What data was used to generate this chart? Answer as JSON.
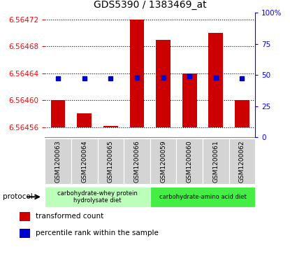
{
  "title": "GDS5390 / 1383469_at",
  "samples": [
    "GSM1200063",
    "GSM1200064",
    "GSM1200065",
    "GSM1200066",
    "GSM1200059",
    "GSM1200060",
    "GSM1200061",
    "GSM1200062"
  ],
  "transformed_count": [
    6.5646,
    6.56458,
    6.564562,
    6.56472,
    6.56469,
    6.56464,
    6.5647,
    6.5646
  ],
  "percentile_rank": [
    47,
    47,
    47,
    48,
    48,
    49,
    48,
    47
  ],
  "baseline": 6.56456,
  "ylim_left": [
    6.564545,
    6.56473
  ],
  "ylim_right": [
    0,
    100
  ],
  "yticks_left": [
    6.56456,
    6.5646,
    6.56464,
    6.56468,
    6.56472
  ],
  "yticks_right": [
    0,
    25,
    50,
    75,
    100
  ],
  "bar_color": "#cc0000",
  "dot_color": "#0000cc",
  "protocol_groups": [
    {
      "label": "carbohydrate-whey protein\nhydrolysate diet",
      "start": 0,
      "end": 4,
      "color": "#bbffbb"
    },
    {
      "label": "carbohydrate-amino acid diet",
      "start": 4,
      "end": 8,
      "color": "#44ee44"
    }
  ],
  "protocol_label": "protocol",
  "legend_items": [
    {
      "color": "#cc0000",
      "label": "transformed count"
    },
    {
      "color": "#0000cc",
      "label": "percentile rank within the sample"
    }
  ]
}
